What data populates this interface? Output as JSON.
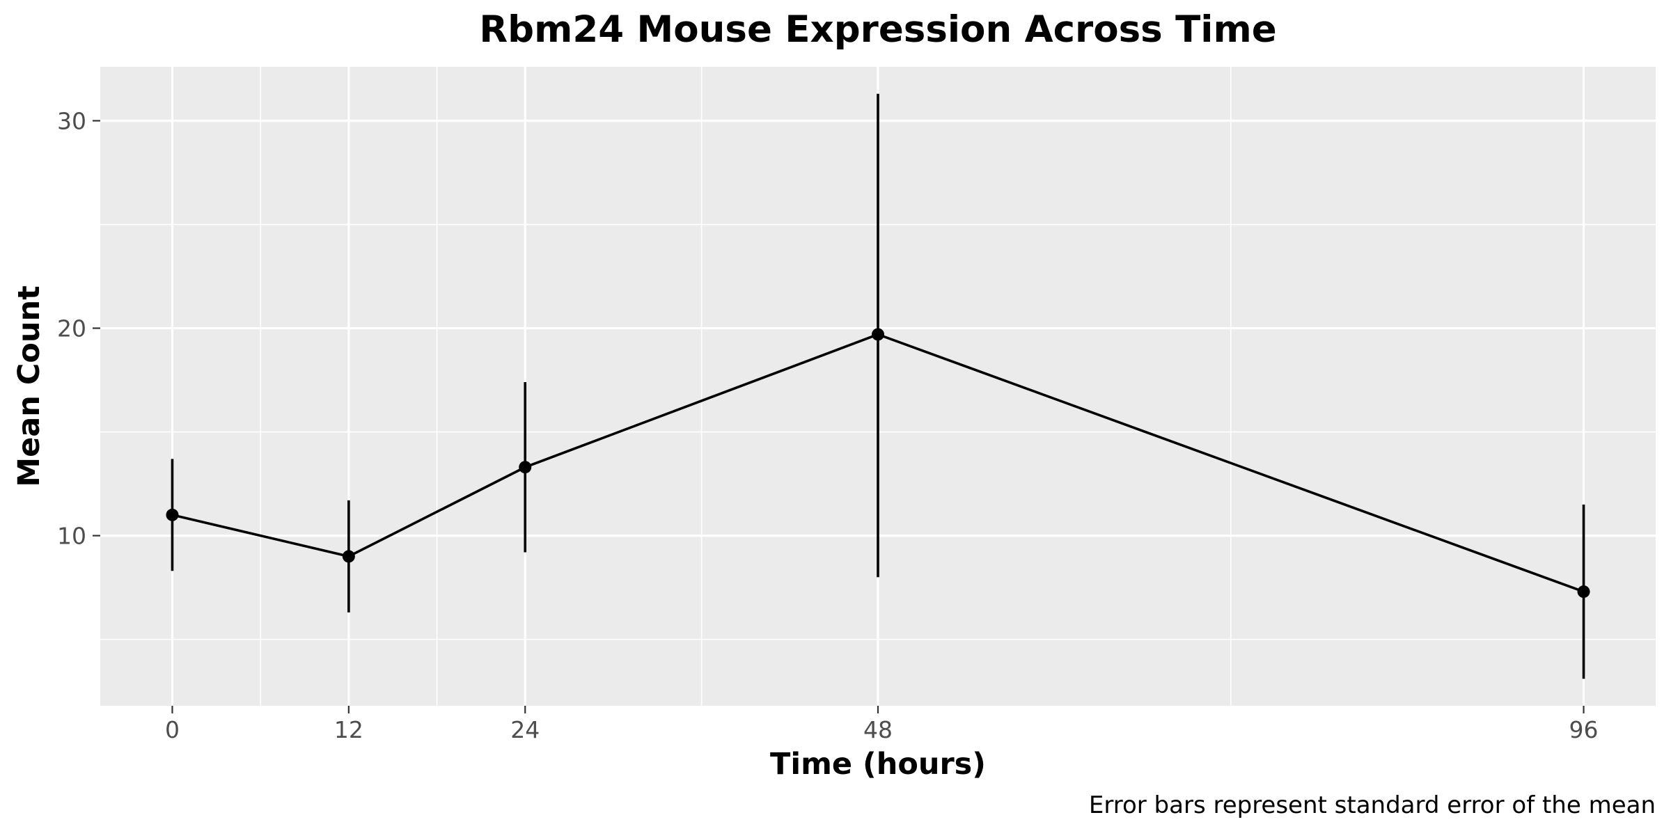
{
  "chart_data": {
    "type": "line",
    "title": "Rbm24 Mouse Expression Across Time",
    "xlabel": "Time (hours)",
    "ylabel": "Mean Count",
    "caption": "Error bars represent standard error of the mean",
    "x": [
      0,
      12,
      24,
      48,
      96
    ],
    "x_tick_labels": [
      "0",
      "12",
      "24",
      "48",
      "96"
    ],
    "y_ticks": [
      10,
      20,
      30
    ],
    "y_tick_labels": [
      "10",
      "20",
      "30"
    ],
    "xlim": [
      -4.9,
      100.9
    ],
    "ylim": [
      1.8,
      32.6
    ],
    "grid": true,
    "legend": "none",
    "series": [
      {
        "values": [
          11.0,
          9.0,
          13.3,
          19.7,
          7.3
        ],
        "error_lower": [
          8.3,
          6.3,
          9.2,
          8.0,
          3.1
        ],
        "error_upper": [
          13.7,
          11.7,
          17.4,
          31.3,
          11.5
        ]
      }
    ],
    "colors": {
      "panel_background": "#ebebeb",
      "grid_line": "#ffffff",
      "series": "#000000",
      "tick_label": "#4d4d4d",
      "tick_mark": "#333333"
    }
  }
}
